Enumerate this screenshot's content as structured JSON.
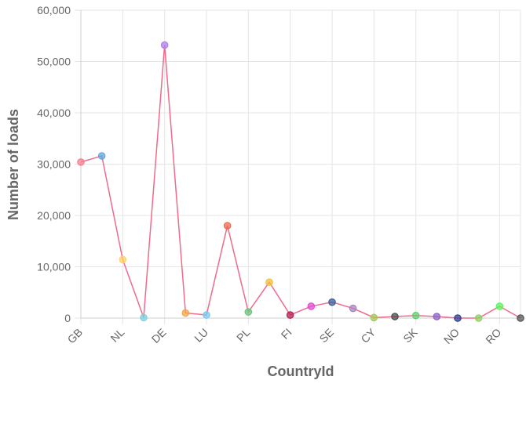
{
  "chart_data": {
    "type": "line",
    "xlabel": "CountryId",
    "ylabel": "Number of loads",
    "ylim": [
      0,
      60000
    ],
    "y_ticks": [
      0,
      10000,
      20000,
      30000,
      40000,
      50000,
      60000
    ],
    "y_tick_labels": [
      "0",
      "10,000",
      "20,000",
      "30,000",
      "40,000",
      "50,000",
      "60,000"
    ],
    "grid": true,
    "categories": [
      "GB",
      "",
      "NL",
      "",
      "DE",
      "",
      "LU",
      "",
      "PL",
      "",
      "FI",
      "",
      "SE",
      "",
      "CY",
      "",
      "SK",
      "",
      "NO",
      "",
      "RO",
      ""
    ],
    "series": [
      {
        "line_color": "#f06a8c",
        "values": [
          30400,
          31600,
          11400,
          100,
          53200,
          1000,
          600,
          18000,
          1200,
          7000,
          600,
          2300,
          3100,
          1900,
          100,
          300,
          500,
          300,
          0,
          0,
          2300,
          0
        ],
        "point_colors": [
          "#f5808f",
          "#5aa9e6",
          "#ffd166",
          "#7ad3e0",
          "#b07cf0",
          "#f7a54a",
          "#7cc8f0",
          "#f06a4d",
          "#6cc47f",
          "#f2c23a",
          "#b5204f",
          "#e04ed1",
          "#3b5f99",
          "#a884c4",
          "#a8c850",
          "#4a4a4a",
          "#5fd16a",
          "#8a64c4",
          "#2e3f8f",
          "#8fd060",
          "#5cf55c",
          "#555555"
        ]
      }
    ]
  }
}
